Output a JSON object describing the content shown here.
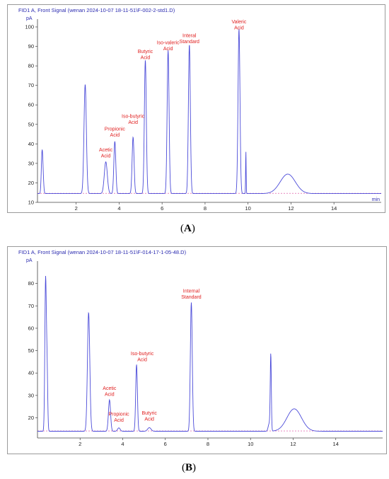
{
  "colors": {
    "signal": "#4b4bd9",
    "baseline": "#d9409a",
    "label": "#e02020",
    "axis": "#444444",
    "title": "#2b2bb0"
  },
  "captions": {
    "a": "A",
    "b": "B"
  },
  "chart_data": [
    {
      "type": "line",
      "title": "FID1 A, Front Signal (wenan 2024-10-07 18-11-51\\F-002-2-std1.D)",
      "ylabel": "pA",
      "xlabel": "min",
      "xlim": [
        0.2,
        16.2
      ],
      "ylim": [
        10,
        104
      ],
      "xticks": [
        2,
        4,
        6,
        8,
        10,
        12,
        14
      ],
      "yticks": [
        10,
        20,
        30,
        40,
        50,
        60,
        70,
        80,
        90,
        100
      ],
      "baseline": 14.5,
      "peaks": [
        {
          "t": 0.43,
          "h": 32.0,
          "w": 0.04
        },
        {
          "t": 0.4,
          "h": 21.5,
          "w": 0.03
        },
        {
          "t": 2.42,
          "h": 70.5,
          "w": 0.055
        },
        {
          "t": 3.38,
          "h": 30.8,
          "w": 0.07
        },
        {
          "t": 3.8,
          "h": 41.3,
          "w": 0.045
        },
        {
          "t": 4.65,
          "h": 43.5,
          "w": 0.045
        },
        {
          "t": 5.22,
          "h": 83.0,
          "w": 0.045
        },
        {
          "t": 6.28,
          "h": 88.0,
          "w": 0.045
        },
        {
          "t": 7.27,
          "h": 91.0,
          "w": 0.045
        },
        {
          "t": 9.58,
          "h": 99.0,
          "w": 0.045
        },
        {
          "t": 9.9,
          "h": 36.5,
          "w": 0.012
        },
        {
          "t": 11.85,
          "h": 24.5,
          "w": 0.35
        }
      ],
      "annotations": [
        {
          "t": 3.38,
          "lines": [
            "Acetic",
            "Acid"
          ],
          "y": 36.2
        },
        {
          "t": 3.8,
          "lines": [
            "Propionic",
            "Acid"
          ],
          "y": 46.8
        },
        {
          "t": 4.65,
          "lines": [
            "Iso-butyric",
            "Acid"
          ],
          "y": 53.3
        },
        {
          "t": 5.22,
          "lines": [
            "Butyric",
            "Acid"
          ],
          "y": 86.6
        },
        {
          "t": 6.28,
          "lines": [
            "Iso-valeric",
            "Acid"
          ],
          "y": 91.2
        },
        {
          "t": 7.27,
          "lines": [
            "Interal",
            "Standard"
          ],
          "y": 94.8
        },
        {
          "t": 9.58,
          "lines": [
            "Valeric",
            "Acid"
          ],
          "y": 101.8
        }
      ]
    },
    {
      "type": "line",
      "title": "FID1 A, Front Signal (wenan 2024-10-07 18-11-51\\F-014-17-1-05-48.D)",
      "ylabel": "pA",
      "xlabel": "",
      "xlim": [
        0.0,
        16.2
      ],
      "ylim": [
        11,
        90
      ],
      "xticks": [
        2,
        4,
        6,
        8,
        10,
        12,
        14
      ],
      "yticks": [
        20,
        30,
        40,
        50,
        60,
        70,
        80
      ],
      "baseline": 14.0,
      "peaks": [
        {
          "t": 0.38,
          "h": 81.5,
          "w": 0.035
        },
        {
          "t": 0.45,
          "h": 40.0,
          "w": 0.03
        },
        {
          "t": 2.4,
          "h": 67.0,
          "w": 0.055
        },
        {
          "t": 3.38,
          "h": 28.0,
          "w": 0.05
        },
        {
          "t": 3.82,
          "h": 15.5,
          "w": 0.06
        },
        {
          "t": 4.65,
          "h": 43.8,
          "w": 0.04
        },
        {
          "t": 5.25,
          "h": 15.6,
          "w": 0.08
        },
        {
          "t": 7.22,
          "h": 71.5,
          "w": 0.045
        },
        {
          "t": 10.95,
          "h": 47.5,
          "w": 0.025
        },
        {
          "t": 10.88,
          "h": 17.5,
          "w": 0.05
        },
        {
          "t": 12.05,
          "h": 24.0,
          "w": 0.34
        }
      ],
      "annotations": [
        {
          "t": 3.38,
          "lines": [
            "Acetic",
            "Acid"
          ],
          "y": 32.5,
          "dx": 0
        },
        {
          "t": 3.82,
          "lines": [
            "Propionic",
            "Acid"
          ],
          "y": 21.0,
          "dx": 0
        },
        {
          "t": 4.65,
          "lines": [
            "Iso-butyric",
            "Acid"
          ],
          "y": 48.0,
          "dx": 8
        },
        {
          "t": 5.25,
          "lines": [
            "Butyric",
            "Acid"
          ],
          "y": 21.5,
          "dx": 0
        },
        {
          "t": 7.22,
          "lines": [
            "Internal",
            "Standard"
          ],
          "y": 76.0,
          "dx": 0
        }
      ]
    }
  ]
}
